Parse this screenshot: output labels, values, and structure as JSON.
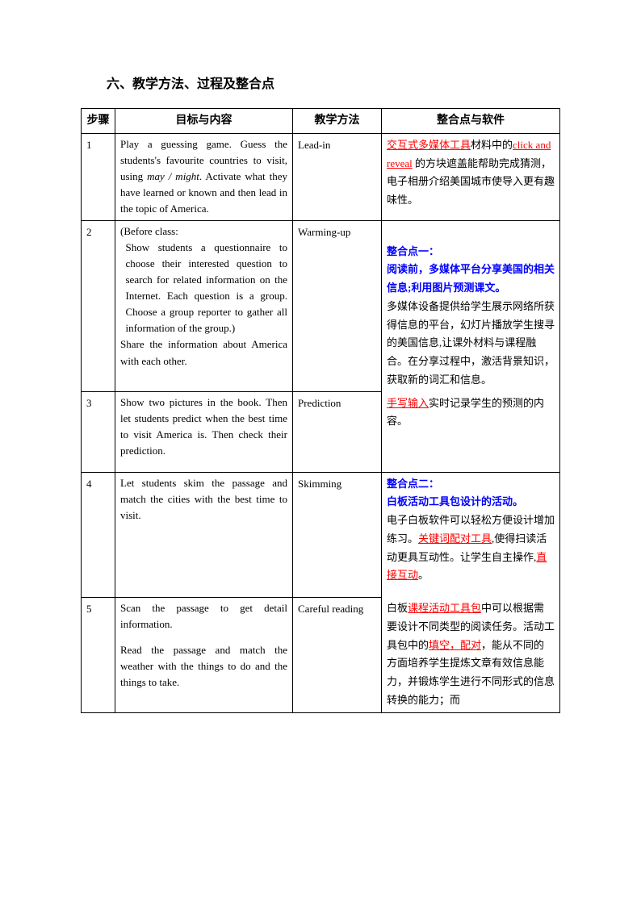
{
  "sectionTitle": "六、教学方法、过程及整合点",
  "headers": {
    "step": "步骤",
    "goal": "目标与内容",
    "method": "教学方法",
    "integration": "整合点与软件"
  },
  "rows": {
    "r1": {
      "num": "1",
      "goal_pre": "Play a guessing game. Guess the students's favourite countries to visit, using ",
      "goal_italic": "may / might",
      "goal_post": ". Activate what they have learned or known and then lead in the topic of America.",
      "method": "Lead-in",
      "int_red1": "交互式多媒体工具",
      "int_t1": "材料中的",
      "int_red2": "click and reveal",
      "int_t2": " 的方块遮盖能帮助完成猜测，电子相册介绍美国城市使导入更有趣味性。"
    },
    "r2": {
      "num": "2",
      "goal_l1": "(Before class:",
      "goal_l2": "Show students a questionnaire to choose their interested question to search for related information on the Internet. Each question is a group. Choose a group reporter to gather all information of the group.)",
      "goal_l3": "Share the information about America with each other.",
      "method": "Warming-up",
      "int_blue1": "整合点一：",
      "int_blue2": "阅读前，多媒体平台分享美国的相关信息;利用图片预测课文。",
      "int_body": "多媒体设备提供给学生展示网络所获得信息的平台，幻灯片播放学生搜寻的美国信息,让课外材料与课程融合。在分享过程中，激活背景知识，获取新的词汇和信息。"
    },
    "r3": {
      "num": "3",
      "goal": "Show two pictures in the book. Then let students predict when the best time to visit America is. Then check their prediction.",
      "method": "Prediction",
      "int_red": "手写输入",
      "int_t": "实时记录学生的预测的内容。"
    },
    "r4": {
      "num": "4",
      "goal": "Let students skim the passage and match the cities with the best time to visit.",
      "method": "Skimming",
      "int_blue1": "整合点二：",
      "int_blue2": "白板活动工具包设计的活动。",
      "int_p1a": " 电子白板软件可以轻松方便设计增加练习。",
      "int_red1": "关键词配对工具",
      "int_p1b": ",使得扫读活动更具互动性。让学生自主操作,",
      "int_red2": "直接互动",
      "int_p1c": "。",
      "int_p2a": "白板",
      "int_red3": "课程活动工具包",
      "int_p2b": "中可以根据需要设计不同类型的阅读任务。活动工具包中的",
      "int_red4": "填空，配对",
      "int_p2c": "，能从不同的方面培养学生提炼文章有效信息能力，并锻炼学生进行不同形式的信息转换的能力；而"
    },
    "r5": {
      "num": "5",
      "goal_l1": "Scan the passage to get detail information.",
      "goal_l2": "Read the passage and match the weather with the things to do and the things to take.",
      "method": "Careful reading"
    }
  }
}
